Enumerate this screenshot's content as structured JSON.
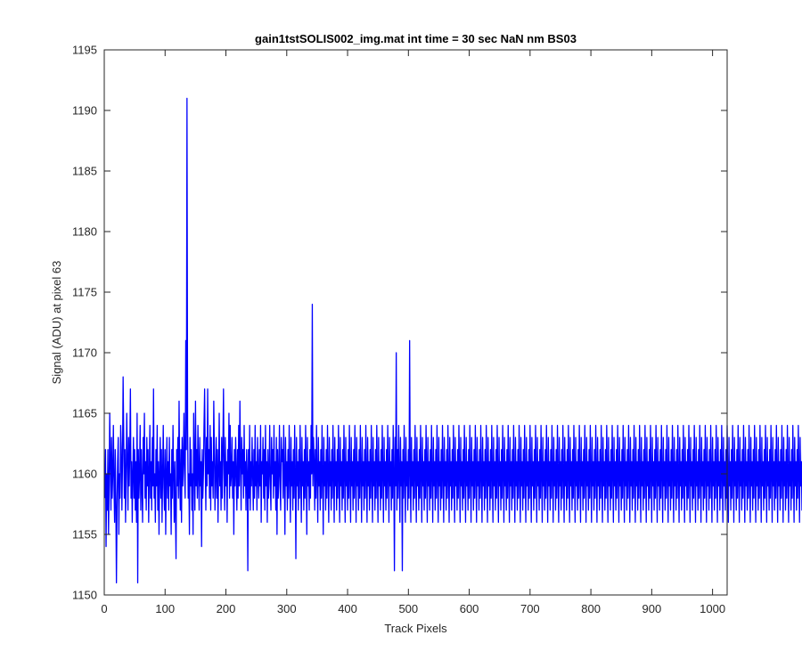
{
  "chart_data": {
    "type": "line",
    "title": "gain1tstSOLIS002_img.mat int time = 30 sec  NaN nm BS03",
    "xlabel": "Track Pixels",
    "ylabel": "Signal (ADU) at pixel 63",
    "xlim": [
      0,
      1024
    ],
    "ylim": [
      1150,
      1195
    ],
    "xticks": [
      0,
      100,
      200,
      300,
      400,
      500,
      600,
      700,
      800,
      900,
      1000
    ],
    "yticks": [
      1150,
      1155,
      1160,
      1165,
      1170,
      1175,
      1180,
      1185,
      1190,
      1195
    ],
    "grid": false,
    "series": [
      {
        "color": "#0000ff",
        "x_start": 1,
        "x_step": 1,
        "values": [
          1158,
          1162,
          1154,
          1160,
          1157,
          1162,
          1155,
          1159,
          1165,
          1161,
          1157,
          1163,
          1158,
          1160,
          1164,
          1159,
          1156,
          1162,
          1158,
          1151,
          1157,
          1161,
          1163,
          1155,
          1160,
          1158,
          1164,
          1162,
          1157,
          1161,
          1168,
          1163,
          1158,
          1162,
          1156,
          1160,
          1165,
          1161,
          1157,
          1163,
          1159,
          1162,
          1167,
          1158,
          1161,
          1156,
          1160,
          1163,
          1158,
          1162,
          1157,
          1161,
          1156,
          1165,
          1151,
          1162,
          1158,
          1160,
          1164,
          1157,
          1162,
          1159,
          1156,
          1163,
          1160,
          1165,
          1158,
          1161,
          1157,
          1163,
          1159,
          1162,
          1156,
          1160,
          1164,
          1158,
          1161,
          1157,
          1163,
          1159,
          1167,
          1158,
          1160,
          1156,
          1162,
          1159,
          1164,
          1157,
          1161,
          1155,
          1160,
          1163,
          1158,
          1162,
          1156,
          1160,
          1164,
          1159,
          1157,
          1162,
          1155,
          1160,
          1163,
          1158,
          1161,
          1157,
          1163,
          1159,
          1160,
          1155,
          1162,
          1158,
          1164,
          1160,
          1156,
          1161,
          1157,
          1153,
          1162,
          1159,
          1163,
          1158,
          1166,
          1160,
          1157,
          1162,
          1156,
          1163,
          1159,
          1161,
          1165,
          1160,
          1158,
          1171,
          1162,
          1191,
          1164,
          1158,
          1160,
          1155,
          1163,
          1159,
          1162,
          1157,
          1160,
          1155,
          1165,
          1161,
          1157,
          1166,
          1159,
          1162,
          1158,
          1164,
          1160,
          1157,
          1163,
          1159,
          1161,
          1154,
          1162,
          1158,
          1160,
          1164,
          1167,
          1161,
          1157,
          1163,
          1159,
          1167,
          1160,
          1162,
          1158,
          1164,
          1157,
          1163,
          1159,
          1161,
          1158,
          1166,
          1162,
          1157,
          1160,
          1163,
          1158,
          1162,
          1156,
          1160,
          1165,
          1159,
          1161,
          1157,
          1163,
          1158,
          1162,
          1167,
          1160,
          1157,
          1163,
          1159,
          1161,
          1156,
          1162,
          1160,
          1165,
          1158,
          1164,
          1159,
          1160,
          1163,
          1158,
          1161,
          1155,
          1162,
          1159,
          1163,
          1160,
          1157,
          1162,
          1158,
          1164,
          1159,
          1166,
          1161,
          1157,
          1163,
          1160,
          1162,
          1158,
          1164,
          1159,
          1161,
          1157,
          1162,
          1160,
          1152,
          1162,
          1158,
          1164,
          1157,
          1161,
          1159,
          1163,
          1160,
          1157,
          1162,
          1158,
          1164,
          1159,
          1161,
          1157,
          1163,
          1160,
          1158,
          1162,
          1159,
          1164,
          1156,
          1161,
          1160,
          1163,
          1158,
          1162,
          1157,
          1164,
          1159,
          1161,
          1156,
          1162,
          1158,
          1160,
          1164,
          1159,
          1157,
          1163,
          1160,
          1162,
          1158,
          1164,
          1159,
          1161,
          1157,
          1163,
          1155,
          1162,
          1158,
          1160,
          1164,
          1159,
          1157,
          1163,
          1161,
          1162,
          1158,
          1164,
          1160,
          1155,
          1163,
          1159,
          1161,
          1157,
          1162,
          1158,
          1164,
          1160,
          1156,
          1163,
          1159,
          1161,
          1157,
          1162,
          1158,
          1164,
          1160,
          1153,
          1163,
          1159,
          1161,
          1157,
          1162,
          1158,
          1164,
          1160,
          1156,
          1163,
          1159,
          1161,
          1157,
          1162,
          1158,
          1164,
          1160,
          1155,
          1163,
          1159,
          1161,
          1157,
          1162,
          1158,
          1164,
          1160,
          1174,
          1159,
          1163,
          1161,
          1157,
          1162,
          1158,
          1164,
          1160,
          1156,
          1163,
          1159,
          1161,
          1157,
          1162,
          1158,
          1164,
          1160,
          1155,
          1163,
          1159,
          1161,
          1157,
          1162,
          1158,
          1164,
          1160,
          1156,
          1163,
          1159,
          1161,
          1157,
          1162,
          1158,
          1164,
          1160,
          1156,
          1163,
          1159,
          1161,
          1157,
          1162,
          1158,
          1164,
          1160,
          1156,
          1163,
          1159,
          1161,
          1157,
          1162,
          1158,
          1164,
          1160,
          1156,
          1163,
          1159,
          1161,
          1157,
          1162,
          1158,
          1164,
          1160,
          1156,
          1163,
          1159,
          1161,
          1157,
          1162,
          1158,
          1164,
          1160,
          1156,
          1163,
          1159,
          1161,
          1157,
          1162,
          1158,
          1164,
          1160,
          1156,
          1163,
          1159,
          1161,
          1157,
          1162,
          1158,
          1164,
          1160,
          1156,
          1163,
          1159,
          1161,
          1157,
          1162,
          1158,
          1164,
          1160,
          1156,
          1163,
          1159,
          1161,
          1157,
          1162,
          1158,
          1164,
          1160,
          1156,
          1163,
          1159,
          1161,
          1157,
          1162,
          1158,
          1164,
          1160,
          1156,
          1163,
          1159,
          1161,
          1157,
          1162,
          1158,
          1164,
          1160,
          1156,
          1163,
          1159,
          1161,
          1157,
          1162,
          1158,
          1164,
          1160,
          1152,
          1163,
          1159,
          1170,
          1157,
          1162,
          1158,
          1164,
          1160,
          1156,
          1163,
          1159,
          1161,
          1152,
          1162,
          1158,
          1164,
          1160,
          1156,
          1163,
          1159,
          1161,
          1157,
          1162,
          1158,
          1171,
          1160,
          1156,
          1163,
          1159,
          1161,
          1157,
          1162,
          1158,
          1164,
          1160,
          1156,
          1163,
          1159,
          1161,
          1157,
          1162,
          1158,
          1164,
          1160,
          1156,
          1163,
          1159,
          1161,
          1157,
          1162,
          1158,
          1164,
          1160,
          1156,
          1163,
          1159,
          1161,
          1157,
          1162,
          1158,
          1164,
          1160,
          1156,
          1163,
          1159,
          1161,
          1157,
          1162,
          1158,
          1164,
          1160,
          1156,
          1163,
          1159,
          1161,
          1157,
          1162,
          1158,
          1164,
          1160,
          1156,
          1163,
          1159,
          1161,
          1157,
          1162,
          1158,
          1164,
          1160,
          1156,
          1163,
          1159,
          1161,
          1157,
          1162,
          1158,
          1164,
          1160,
          1156,
          1163,
          1159,
          1161,
          1157,
          1162,
          1158,
          1164,
          1160,
          1156,
          1163,
          1159,
          1161,
          1157,
          1162,
          1158,
          1164,
          1160,
          1156,
          1163,
          1159,
          1161,
          1157,
          1162,
          1158,
          1164,
          1160,
          1156,
          1163,
          1159,
          1161,
          1157,
          1162,
          1158,
          1164,
          1160,
          1156,
          1163,
          1159,
          1161,
          1157,
          1162,
          1158,
          1164,
          1160,
          1156,
          1163,
          1159,
          1161,
          1157,
          1162,
          1158,
          1164,
          1160,
          1156,
          1163,
          1159,
          1161,
          1157,
          1162,
          1158,
          1164,
          1160,
          1156,
          1163,
          1159,
          1161,
          1157,
          1162,
          1158,
          1164,
          1160,
          1156,
          1163,
          1159,
          1161,
          1157,
          1162,
          1158,
          1164,
          1160,
          1156,
          1163,
          1159,
          1161,
          1157,
          1162,
          1158,
          1164,
          1160,
          1156,
          1163,
          1159,
          1161,
          1157,
          1162,
          1158,
          1164,
          1160,
          1156,
          1163,
          1159,
          1161,
          1157,
          1162,
          1158,
          1164,
          1160,
          1156,
          1163,
          1159,
          1161,
          1157,
          1162,
          1158,
          1164,
          1160,
          1156,
          1163,
          1159,
          1161,
          1157,
          1162,
          1158,
          1164,
          1160,
          1156,
          1163,
          1159,
          1161,
          1157,
          1162,
          1158,
          1164,
          1160,
          1156,
          1163,
          1159,
          1161,
          1157,
          1162,
          1158,
          1164,
          1160,
          1156,
          1163,
          1159,
          1161,
          1157,
          1162,
          1158,
          1164,
          1160,
          1156,
          1163,
          1159,
          1161,
          1157,
          1162,
          1158,
          1164,
          1160,
          1156,
          1163,
          1159,
          1161,
          1157,
          1162,
          1158,
          1164,
          1160,
          1156,
          1163,
          1159,
          1161,
          1157,
          1162,
          1158,
          1164,
          1160,
          1156,
          1163,
          1159,
          1161,
          1157,
          1162,
          1158,
          1164,
          1160,
          1156,
          1163,
          1159,
          1161,
          1157,
          1162,
          1158,
          1164,
          1160,
          1156,
          1163,
          1159,
          1161,
          1157,
          1162,
          1158,
          1164,
          1160,
          1156,
          1163,
          1159,
          1161,
          1157,
          1162,
          1158,
          1164,
          1160,
          1156,
          1163,
          1159,
          1161,
          1157,
          1162,
          1158,
          1164,
          1160,
          1156,
          1163,
          1159,
          1161,
          1157,
          1162,
          1158,
          1164,
          1160,
          1156,
          1163,
          1159,
          1161,
          1157,
          1162,
          1158,
          1164,
          1160,
          1156,
          1163,
          1159,
          1161,
          1157,
          1162,
          1158,
          1164,
          1160,
          1156,
          1163,
          1159,
          1161,
          1157,
          1162,
          1158,
          1164,
          1160,
          1156,
          1163,
          1159,
          1161,
          1157,
          1162,
          1158,
          1164,
          1160,
          1156,
          1163,
          1159,
          1161,
          1157,
          1162,
          1158,
          1164,
          1160,
          1156,
          1163,
          1159,
          1161,
          1157,
          1162,
          1158,
          1164,
          1160,
          1156,
          1163,
          1159,
          1161,
          1157,
          1162,
          1158,
          1164,
          1160,
          1156,
          1163,
          1159,
          1161,
          1157,
          1162,
          1158,
          1164,
          1160,
          1156,
          1163,
          1159,
          1161,
          1157,
          1162,
          1158,
          1164,
          1160,
          1156,
          1163,
          1159,
          1161,
          1157,
          1162,
          1158,
          1164,
          1160,
          1156,
          1163,
          1159,
          1161,
          1157,
          1162,
          1158,
          1164,
          1160,
          1156,
          1163,
          1159,
          1161,
          1157,
          1162,
          1158,
          1164,
          1160,
          1156,
          1163,
          1159,
          1161,
          1157,
          1162,
          1158,
          1164,
          1160,
          1156,
          1163,
          1159,
          1161,
          1157,
          1162,
          1158,
          1164,
          1160,
          1156,
          1163,
          1159,
          1161,
          1157,
          1162,
          1158,
          1164,
          1160,
          1156,
          1163,
          1159,
          1161,
          1157,
          1162,
          1158,
          1164,
          1160,
          1156,
          1163,
          1159,
          1161,
          1157,
          1162,
          1158,
          1164,
          1160,
          1156,
          1163,
          1159,
          1161,
          1157,
          1162,
          1158,
          1164,
          1160,
          1156,
          1163,
          1159,
          1161,
          1157,
          1162,
          1158,
          1164,
          1160,
          1156,
          1163,
          1159,
          1161,
          1157,
          1162,
          1158,
          1164,
          1160,
          1156,
          1163,
          1159,
          1161,
          1157,
          1162,
          1158,
          1164,
          1160,
          1156,
          1163,
          1159,
          1161,
          1157,
          1162,
          1158,
          1164,
          1160,
          1156,
          1163,
          1159,
          1161,
          1157,
          1162,
          1158,
          1164,
          1160,
          1156,
          1163,
          1159,
          1161,
          1157,
          1162,
          1158,
          1164,
          1160,
          1156,
          1163,
          1159,
          1161,
          1157,
          1162,
          1158,
          1164,
          1160,
          1156,
          1163,
          1159,
          1161,
          1157,
          1162,
          1158,
          1164,
          1160,
          1156,
          1163,
          1159,
          1161,
          1157,
          1162,
          1158,
          1164,
          1160,
          1156,
          1163,
          1159,
          1161,
          1157,
          1162,
          1158,
          1164,
          1160,
          1156,
          1163,
          1159,
          1161,
          1157,
          1162,
          1158,
          1164,
          1160,
          1156,
          1163,
          1159,
          1161,
          1157,
          1162,
          1158,
          1164,
          1160,
          1156,
          1163,
          1159,
          1161,
          1157,
          1162,
          1158,
          1164,
          1160,
          1156,
          1163,
          1159,
          1161,
          1157,
          1162,
          1158,
          1164,
          1160,
          1156,
          1163,
          1159,
          1161,
          1157,
          1162,
          1158,
          1164,
          1160,
          1156,
          1163,
          1159,
          1161,
          1157,
          1162,
          1158,
          1164,
          1160,
          1156,
          1163,
          1159,
          1161,
          1157,
          1162,
          1158,
          1164,
          1160,
          1156,
          1163,
          1159,
          1161,
          1157,
          1162,
          1158,
          1164,
          1160,
          1156,
          1163,
          1159,
          1161,
          1157,
          1162,
          1158,
          1164,
          1160,
          1156,
          1163,
          1159,
          1161,
          1157,
          1162,
          1158,
          1164,
          1160,
          1156,
          1163,
          1159,
          1161,
          1157,
          1162,
          1158,
          1164,
          1160,
          1156,
          1163,
          1159,
          1161,
          1157,
          1162,
          1158,
          1164
        ]
      }
    ]
  }
}
